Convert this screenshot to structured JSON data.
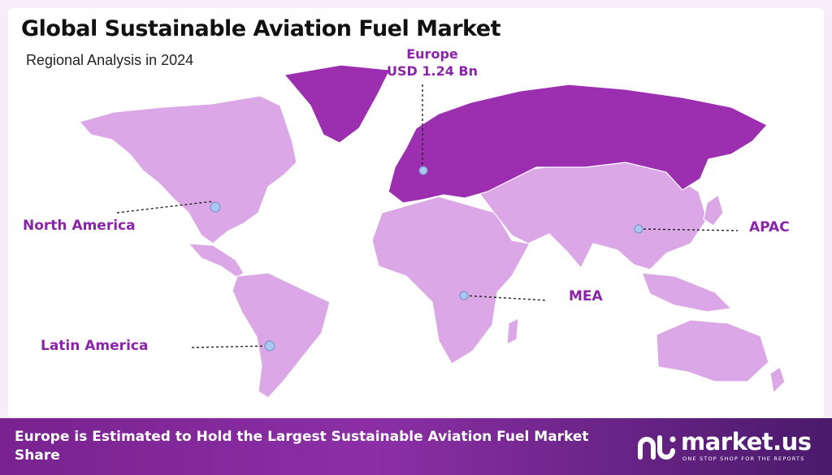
{
  "header": {
    "title": "Global Sustainable Aviation Fuel Market",
    "subtitle": "Regional Analysis in 2024"
  },
  "regions": {
    "north_america": "North America",
    "latin_america": "Latin America",
    "mea": "MEA",
    "apac": "APAC",
    "europe_name": "Europe",
    "europe_value": "USD 1.24 Bn"
  },
  "footer": {
    "text": "Europe is Estimated to Hold the Largest Sustainable Aviation Fuel Market Share",
    "brand": "market.us",
    "tagline": "ONE STOP SHOP FOR THE REPORTS"
  },
  "colors": {
    "highlight": "#9b2fb0",
    "base_region": "#dba7e6",
    "label": "#8a24a8"
  }
}
